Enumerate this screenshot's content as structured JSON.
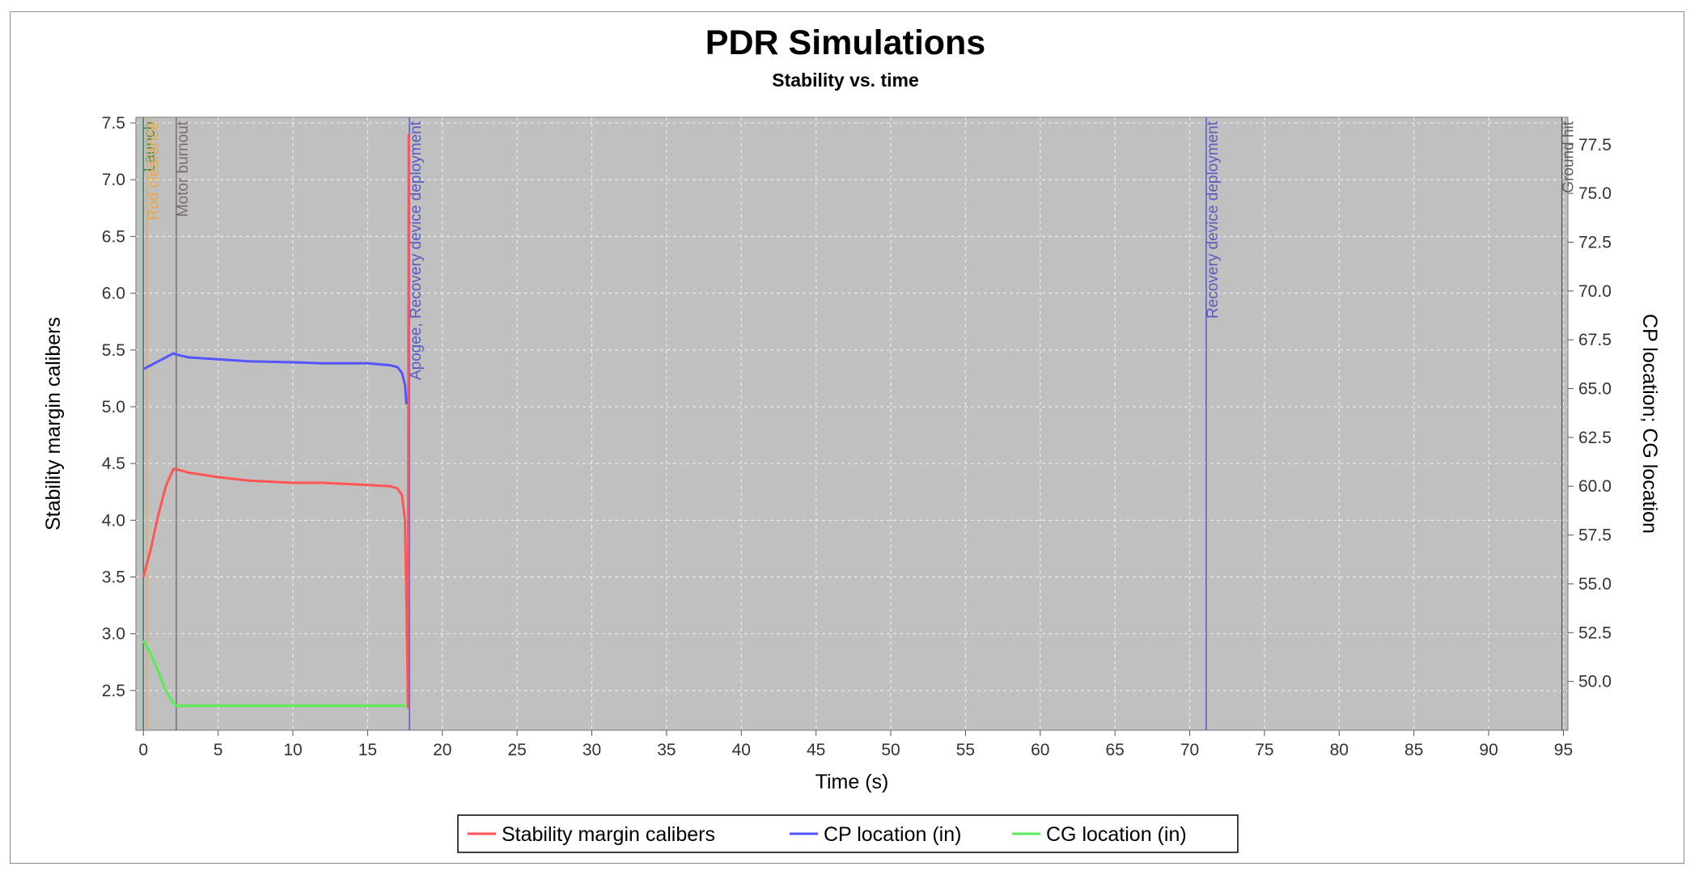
{
  "chart_data": {
    "type": "line",
    "title": "PDR Simulations",
    "subtitle": "Stability vs. time",
    "xlabel": "Time (s)",
    "ylabel_left": "Stability margin calibers",
    "ylabel_right": "CP location; CG location",
    "xlim": [
      -0.5,
      95.3
    ],
    "ylim_left": [
      2.15,
      7.55
    ],
    "ylim_right": [
      47.5,
      78.9
    ],
    "x_ticks": [
      "0",
      "5",
      "10",
      "15",
      "20",
      "25",
      "30",
      "35",
      "40",
      "45",
      "50",
      "55",
      "60",
      "65",
      "70",
      "75",
      "80",
      "85",
      "90",
      "95"
    ],
    "y_ticks_left": [
      "2.5",
      "3.0",
      "3.5",
      "4.0",
      "4.5",
      "5.0",
      "5.5",
      "6.0",
      "6.5",
      "7.0",
      "7.5"
    ],
    "y_ticks_right": [
      "50.0",
      "52.5",
      "55.0",
      "57.5",
      "60.0",
      "62.5",
      "65.0",
      "67.5",
      "70.0",
      "72.5",
      "75.0",
      "77.5"
    ],
    "grid": true,
    "legend_position": "bottom",
    "colors": {
      "plot_bg": "#c0c0c0",
      "grid": "#f0f0f0",
      "stability": "#ff5555",
      "cp": "#5555ff",
      "cg": "#55ee55"
    },
    "series": [
      {
        "name": "Stability margin calibers",
        "axis": "left",
        "x": [
          0.0,
          0.5,
          1.0,
          1.5,
          2.0,
          2.2,
          3.0,
          5.0,
          7.0,
          10.0,
          12.0,
          15.0,
          16.5,
          17.0,
          17.3,
          17.5,
          17.6,
          17.7,
          17.75
        ],
        "values": [
          3.5,
          3.75,
          4.05,
          4.3,
          4.45,
          4.45,
          4.42,
          4.38,
          4.35,
          4.33,
          4.33,
          4.31,
          4.3,
          4.28,
          4.22,
          4.0,
          3.3,
          2.35,
          7.4
        ]
      },
      {
        "name": "CP location (in)",
        "axis": "right",
        "x": [
          0.0,
          0.5,
          1.0,
          1.5,
          2.0,
          2.2,
          3.0,
          5.0,
          7.0,
          10.0,
          12.0,
          15.0,
          16.5,
          17.0,
          17.3,
          17.5,
          17.6
        ],
        "values": [
          66.0,
          66.2,
          66.4,
          66.6,
          66.8,
          66.75,
          66.6,
          66.5,
          66.4,
          66.35,
          66.3,
          66.3,
          66.2,
          66.1,
          65.8,
          65.2,
          64.2
        ]
      },
      {
        "name": "CG location (in)",
        "axis": "right",
        "x": [
          0.0,
          0.5,
          1.0,
          1.5,
          2.0,
          2.2,
          5.0,
          10.0,
          15.0,
          17.5,
          17.6
        ],
        "values": [
          52.1,
          51.4,
          50.5,
          49.5,
          48.9,
          48.75,
          48.75,
          48.75,
          48.75,
          48.75,
          48.75
        ]
      }
    ],
    "events": [
      {
        "label": "Launch",
        "x": 0.0,
        "color": "#2e8b57"
      },
      {
        "label": "Rod clearance",
        "x": 0.25,
        "color": "#e8a94a"
      },
      {
        "label": "Motor burnout",
        "x": 2.2,
        "color": "#7a6c6c"
      },
      {
        "label": "Apogee, Recovery device deployment",
        "x": 17.8,
        "color": "#5a5abf"
      },
      {
        "label": "Recovery device deployment",
        "x": 71.1,
        "color": "#5a5abf"
      },
      {
        "label": "Ground hit",
        "x": 94.9,
        "color": "#606060"
      }
    ]
  }
}
